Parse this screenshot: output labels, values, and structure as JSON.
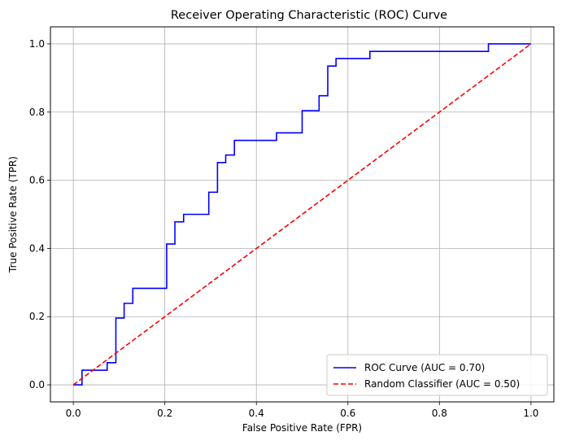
{
  "chart_data": {
    "type": "line",
    "title": "Receiver Operating Characteristic (ROC) Curve",
    "xlabel": "False Positive Rate (FPR)",
    "ylabel": "True Positive Rate (TPR)",
    "xlim": [
      -0.05,
      1.05
    ],
    "ylim": [
      -0.05,
      1.05
    ],
    "xticks": [
      0.0,
      0.2,
      0.4,
      0.6,
      0.8,
      1.0
    ],
    "xtick_labels": [
      "0.0",
      "0.2",
      "0.4",
      "0.6",
      "0.8",
      "1.0"
    ],
    "yticks": [
      0.0,
      0.2,
      0.4,
      0.6,
      0.8,
      1.0
    ],
    "ytick_labels": [
      "0.0",
      "0.2",
      "0.4",
      "0.6",
      "0.8",
      "1.0"
    ],
    "grid": true,
    "legend_position": "lower right",
    "series": [
      {
        "name": "ROC Curve (AUC = 0.70)",
        "color": "#0000ff",
        "style": "solid",
        "x": [
          0.0,
          0.019,
          0.019,
          0.074,
          0.074,
          0.093,
          0.093,
          0.111,
          0.111,
          0.13,
          0.13,
          0.204,
          0.204,
          0.222,
          0.222,
          0.241,
          0.241,
          0.296,
          0.296,
          0.315,
          0.315,
          0.333,
          0.333,
          0.352,
          0.352,
          0.444,
          0.444,
          0.5,
          0.5,
          0.537,
          0.537,
          0.556,
          0.556,
          0.574,
          0.574,
          0.648,
          0.648,
          0.907,
          0.907,
          1.0
        ],
        "y": [
          0.0,
          0.0,
          0.043,
          0.043,
          0.065,
          0.065,
          0.196,
          0.196,
          0.239,
          0.239,
          0.283,
          0.283,
          0.413,
          0.413,
          0.478,
          0.478,
          0.5,
          0.5,
          0.565,
          0.565,
          0.652,
          0.652,
          0.674,
          0.674,
          0.717,
          0.717,
          0.739,
          0.739,
          0.804,
          0.804,
          0.848,
          0.848,
          0.935,
          0.935,
          0.957,
          0.957,
          0.978,
          0.978,
          1.0,
          1.0
        ]
      },
      {
        "name": "Random Classifier (AUC = 0.50)",
        "color": "#ff0000",
        "style": "dashed",
        "x": [
          0.0,
          1.0
        ],
        "y": [
          0.0,
          1.0
        ]
      }
    ]
  }
}
